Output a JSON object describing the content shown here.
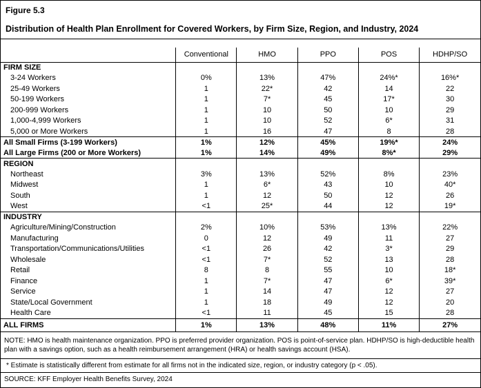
{
  "figure": {
    "label": "Figure 5.3",
    "title": "Distribution of Health Plan Enrollment for Covered Workers, by Firm Size, Region, and Industry, 2024"
  },
  "table": {
    "columns": [
      "Conventional",
      "HMO",
      "PPO",
      "POS",
      "HDHP/SO"
    ],
    "rows": [
      {
        "type": "section",
        "label": "FIRM SIZE"
      },
      {
        "type": "data",
        "label": "3-24 Workers",
        "values": [
          "0%",
          "13%",
          "47%",
          "24%*",
          "16%*"
        ]
      },
      {
        "type": "data",
        "label": "25-49 Workers",
        "values": [
          "1",
          "22*",
          "42",
          "14",
          "22"
        ]
      },
      {
        "type": "data",
        "label": "50-199 Workers",
        "values": [
          "1",
          "7*",
          "45",
          "17*",
          "30"
        ]
      },
      {
        "type": "data",
        "label": "200-999 Workers",
        "values": [
          "1",
          "10",
          "50",
          "10",
          "29"
        ]
      },
      {
        "type": "data",
        "label": "1,000-4,999 Workers",
        "values": [
          "1",
          "10",
          "52",
          "6*",
          "31"
        ]
      },
      {
        "type": "data",
        "label": "5,000 or More Workers",
        "values": [
          "1",
          "16",
          "47",
          "8",
          "28"
        ]
      },
      {
        "type": "total",
        "label": "All Small Firms (3-199 Workers)",
        "values": [
          "1%",
          "12%",
          "45%",
          "19%*",
          "24%"
        ]
      },
      {
        "type": "total",
        "label": "All Large Firms (200 or More Workers)",
        "values": [
          "1%",
          "14%",
          "49%",
          "8%*",
          "29%"
        ]
      },
      {
        "type": "section",
        "label": "REGION"
      },
      {
        "type": "data",
        "label": "Northeast",
        "values": [
          "3%",
          "13%",
          "52%",
          "8%",
          "23%"
        ]
      },
      {
        "type": "data",
        "label": "Midwest",
        "values": [
          "1",
          "6*",
          "43",
          "10",
          "40*"
        ]
      },
      {
        "type": "data",
        "label": "South",
        "values": [
          "1",
          "12",
          "50",
          "12",
          "26"
        ]
      },
      {
        "type": "data",
        "label": "West",
        "values": [
          "<1",
          "25*",
          "44",
          "12",
          "19*"
        ]
      },
      {
        "type": "section",
        "label": "INDUSTRY"
      },
      {
        "type": "data",
        "label": "Agriculture/Mining/Construction",
        "values": [
          "2%",
          "10%",
          "53%",
          "13%",
          "22%"
        ]
      },
      {
        "type": "data",
        "label": "Manufacturing",
        "values": [
          "0",
          "12",
          "49",
          "11",
          "27"
        ]
      },
      {
        "type": "data",
        "label": "Transportation/Communications/Utilities",
        "values": [
          "<1",
          "26",
          "42",
          "3*",
          "29"
        ]
      },
      {
        "type": "data",
        "label": "Wholesale",
        "values": [
          "<1",
          "7*",
          "52",
          "13",
          "28"
        ]
      },
      {
        "type": "data",
        "label": "Retail",
        "values": [
          "8",
          "8",
          "55",
          "10",
          "18*"
        ]
      },
      {
        "type": "data",
        "label": "Finance",
        "values": [
          "1",
          "7*",
          "47",
          "6*",
          "39*"
        ]
      },
      {
        "type": "data",
        "label": "Service",
        "values": [
          "1",
          "14",
          "47",
          "12",
          "27"
        ]
      },
      {
        "type": "data",
        "label": "State/Local Government",
        "values": [
          "1",
          "18",
          "49",
          "12",
          "20"
        ]
      },
      {
        "type": "data",
        "label": "Health Care",
        "values": [
          "<1",
          "11",
          "45",
          "15",
          "28"
        ]
      },
      {
        "type": "total",
        "label": "ALL FIRMS",
        "values": [
          "1%",
          "13%",
          "48%",
          "11%",
          "27%"
        ]
      }
    ]
  },
  "notes": {
    "note": "NOTE: HMO is health maintenance organization. PPO is preferred provider organization. POS is point-of-service plan. HDHP/SO is high-deductible health plan with a savings option, such as a health reimbursement arrangement (HRA) or health savings account (HSA).",
    "estimate_note": "* Estimate is statistically different from estimate for all firms not in the indicated size, region, or industry category (p < .05).",
    "source": "SOURCE: KFF Employer Health Benefits Survey, 2024"
  }
}
